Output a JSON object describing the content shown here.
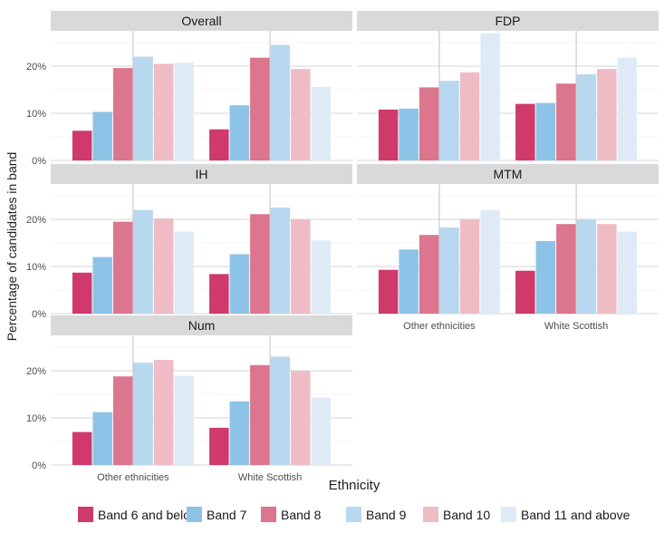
{
  "chart_data": {
    "type": "bar",
    "xlabel": "Ethnicity",
    "ylabel": "Percentage of candidates in band",
    "categories": [
      "Other ethnicities",
      "White Scottish"
    ],
    "yticks": [
      "0%",
      "10%",
      "20%"
    ],
    "ylim": [
      0,
      27.5
    ],
    "grid": true,
    "legend_position": "bottom",
    "bands": [
      {
        "name": "Band 6 and below",
        "color": "#cf3a6b"
      },
      {
        "name": "Band 7",
        "color": "#8dc3e6"
      },
      {
        "name": "Band 8",
        "color": "#db768e"
      },
      {
        "name": "Band 9",
        "color": "#b8d8f0"
      },
      {
        "name": "Band 10",
        "color": "#efbcc6"
      },
      {
        "name": "Band 11 and above",
        "color": "#deebf7"
      }
    ],
    "panels": [
      {
        "title": "Overall",
        "values": [
          [
            6.3,
            10.3,
            19.6,
            22.0,
            20.5,
            20.7
          ],
          [
            6.6,
            11.7,
            21.8,
            24.5,
            19.4,
            15.6
          ]
        ]
      },
      {
        "title": "FDP",
        "values": [
          [
            10.8,
            11.0,
            15.5,
            16.9,
            18.7,
            27.0
          ],
          [
            12.0,
            12.2,
            16.3,
            18.3,
            19.4,
            21.8
          ]
        ]
      },
      {
        "title": "IH",
        "values": [
          [
            8.7,
            12.0,
            19.5,
            22.0,
            20.2,
            17.4
          ],
          [
            8.4,
            12.6,
            21.1,
            22.5,
            20.0,
            15.5
          ]
        ]
      },
      {
        "title": "MTM",
        "values": [
          [
            9.3,
            13.6,
            16.7,
            18.3,
            20.1,
            22.0
          ],
          [
            9.1,
            15.4,
            19.0,
            20.0,
            19.0,
            17.4
          ]
        ]
      },
      {
        "title": "Num",
        "values": [
          [
            7.0,
            11.2,
            18.8,
            21.7,
            22.3,
            18.9
          ],
          [
            7.9,
            13.5,
            21.2,
            23.0,
            19.9,
            14.3
          ]
        ]
      }
    ]
  }
}
